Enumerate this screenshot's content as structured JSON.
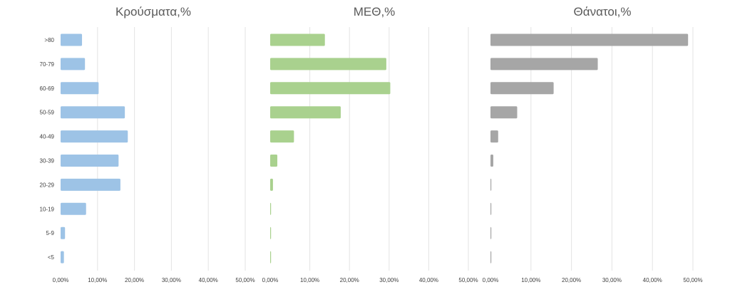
{
  "chart_data": [
    {
      "type": "bar",
      "orientation": "horizontal",
      "title": "Κρούσματα,%",
      "categories": [
        ">80",
        "70-79",
        "60-69",
        "50-59",
        "40-49",
        "30-39",
        "20-29",
        "10-19",
        "5-9",
        "<5"
      ],
      "values": [
        5.8,
        6.6,
        10.3,
        17.4,
        18.2,
        15.7,
        16.2,
        6.9,
        1.2,
        0.9
      ],
      "xlim": [
        0,
        50
      ],
      "xticks": [
        "0,00%",
        "10,00%",
        "20,00%",
        "30,00%",
        "40,00%",
        "50,00%"
      ],
      "grid": true,
      "color": "#9dc3e6"
    },
    {
      "type": "bar",
      "orientation": "horizontal",
      "title": "ΜΕΘ,%",
      "categories": [
        ">80",
        "70-79",
        "60-69",
        "50-59",
        "40-49",
        "30-39",
        "20-29",
        "10-19",
        "5-9",
        "<5"
      ],
      "values": [
        13.8,
        29.3,
        30.3,
        17.8,
        6.0,
        1.8,
        0.7,
        0.1,
        0.1,
        0.1
      ],
      "xlim": [
        0,
        50
      ],
      "xticks": [
        "0,00%",
        "10,00%",
        "20,00%",
        "30,00%",
        "40,00%",
        "50,00%"
      ],
      "grid": true,
      "color": "#a9d18e"
    },
    {
      "type": "bar",
      "orientation": "horizontal",
      "title": "Θάνατοι,%",
      "categories": [
        ">80",
        "70-79",
        "60-69",
        "50-59",
        "40-49",
        "30-39",
        "20-29",
        "10-19",
        "5-9",
        "<5"
      ],
      "values": [
        48.8,
        26.5,
        15.6,
        6.6,
        1.9,
        0.7,
        0.2,
        0.1,
        0,
        0
      ],
      "xlim": [
        0,
        50
      ],
      "xticks": [
        "0,00%",
        "10,00%",
        "20,00%",
        "30,00%",
        "40,00%",
        "50,00%"
      ],
      "grid": true,
      "color": "#a6a6a6"
    }
  ]
}
